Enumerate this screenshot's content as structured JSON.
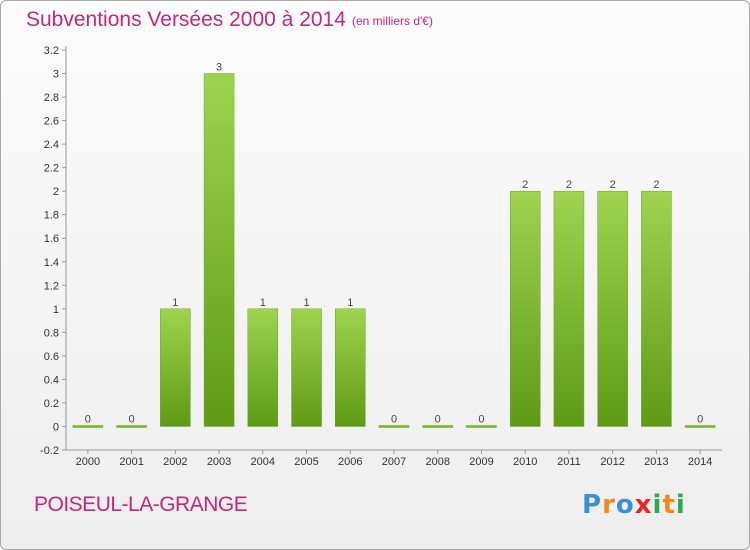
{
  "title": "Subventions Versées 2000 à 2014",
  "subtitle": "(en milliers d'€)",
  "commune": "POISEUL-LA-GRANGE",
  "logo": {
    "letters": [
      "P",
      "r",
      "o",
      "x",
      "i",
      "t",
      "i"
    ],
    "colors": [
      "#3a8fd6",
      "#f08a1c",
      "#3a8fd6",
      "#e8262a",
      "#2faa4a",
      "#f08a1c",
      "#2faa4a"
    ]
  },
  "colors": {
    "title": "#c2287b",
    "bar_top": "#9ed44f",
    "bar_bottom": "#5f9a14"
  },
  "chart_data": {
    "type": "bar",
    "categories": [
      "2000",
      "2001",
      "2002",
      "2003",
      "2004",
      "2005",
      "2006",
      "2007",
      "2008",
      "2009",
      "2010",
      "2011",
      "2012",
      "2013",
      "2014"
    ],
    "values": [
      0,
      0,
      1,
      3,
      1,
      1,
      1,
      0,
      0,
      0,
      2,
      2,
      2,
      2,
      0
    ],
    "value_labels": [
      "0",
      "0",
      "1",
      "3",
      "1",
      "1",
      "1",
      "0",
      "0",
      "0",
      "2",
      "2",
      "2",
      "2",
      "0"
    ],
    "yticks": [
      "-0.2",
      "0",
      "0.2",
      "0.4",
      "0.6",
      "0.8",
      "1",
      "1.2",
      "1.4",
      "1.6",
      "1.8",
      "2",
      "2.2",
      "2.4",
      "2.6",
      "2.8",
      "3",
      "3.2"
    ],
    "ylim": [
      -0.2,
      3.2
    ],
    "grid": false
  }
}
